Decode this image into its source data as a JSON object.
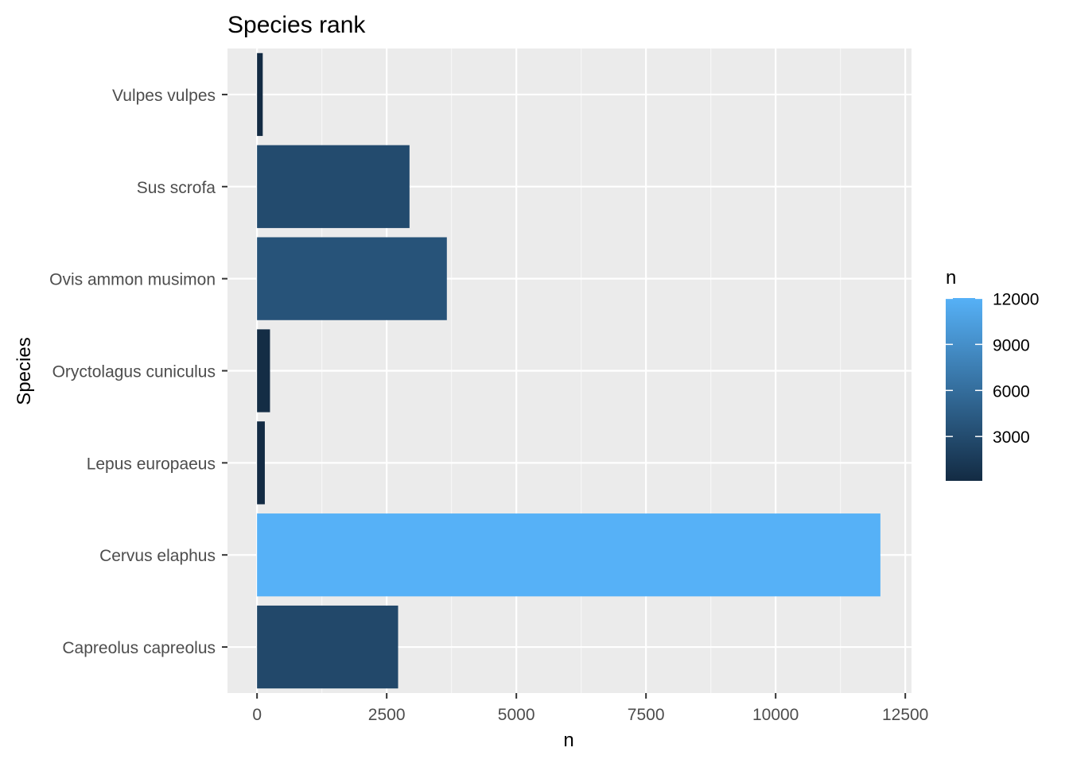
{
  "chart_data": {
    "type": "bar",
    "orientation": "horizontal",
    "title": "Species rank",
    "xlabel": "n",
    "ylabel": "Species",
    "categories": [
      "Capreolus capreolus",
      "Cervus elaphus",
      "Lepus europaeus",
      "Oryctolagus cuniculus",
      "Ovis ammon musimon",
      "Sus scrofa",
      "Vulpes vulpes"
    ],
    "values": [
      2720,
      12020,
      150,
      250,
      3660,
      2940,
      110
    ],
    "xlim": [
      -570,
      12620
    ],
    "xticks": [
      0,
      2500,
      5000,
      7500,
      10000,
      12500
    ],
    "xtick_labels": [
      "0",
      "2500",
      "5000",
      "7500",
      "10000",
      "12500"
    ],
    "grid": true,
    "legend": {
      "title": "n",
      "type": "colorbar",
      "placement": "right",
      "min": 110,
      "max": 12020,
      "low_color": "#132b43",
      "high_color": "#56b1f7",
      "ticks": [
        3000,
        6000,
        9000,
        12000
      ],
      "tick_labels": [
        "3000",
        "6000",
        "9000",
        "12000"
      ]
    },
    "colors": {
      "panel_background": "#ebebeb",
      "grid_major": "#ffffff",
      "grid_minor": "#f7f7f7"
    }
  }
}
